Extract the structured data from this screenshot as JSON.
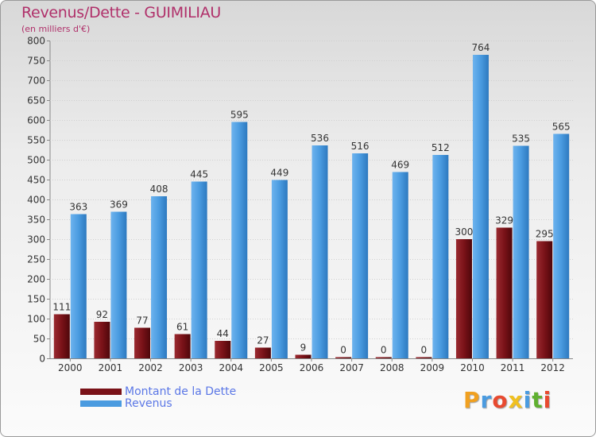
{
  "title": "Revenus/Dette - GUIMILIAU",
  "subtitle": "(en milliers d'€)",
  "colors": {
    "title": "#b0306a",
    "dette": "#7a1218",
    "revenus": "#4a9be0",
    "legend_text": "#5b77e6"
  },
  "chart_data": {
    "type": "bar",
    "title": "Revenus/Dette - GUIMILIAU",
    "subtitle": "(en milliers d'€)",
    "xlabel": "",
    "ylabel": "",
    "ylim": [
      0,
      800
    ],
    "yticks": [
      0,
      50,
      100,
      150,
      200,
      250,
      300,
      350,
      400,
      450,
      500,
      550,
      600,
      650,
      700,
      750,
      800
    ],
    "grid": true,
    "legend_position": "bottom-left",
    "categories": [
      "2000",
      "2001",
      "2002",
      "2003",
      "2004",
      "2005",
      "2006",
      "2007",
      "2008",
      "2009",
      "2010",
      "2011",
      "2012"
    ],
    "series": [
      {
        "name": "Montant de la Dette",
        "color": "#7a1218",
        "values": [
          111,
          92,
          77,
          61,
          44,
          27,
          9,
          0,
          0,
          0,
          300,
          329,
          295
        ]
      },
      {
        "name": "Revenus",
        "color": "#4a9be0",
        "values": [
          363,
          369,
          408,
          445,
          595,
          449,
          536,
          516,
          469,
          512,
          764,
          535,
          565
        ]
      }
    ]
  },
  "legend": [
    {
      "label": "Montant de la Dette",
      "color": "#7a1218"
    },
    {
      "label": "Revenus",
      "color": "#4a9be0"
    }
  ],
  "logo": {
    "letters": [
      "P",
      "r",
      "o",
      "x",
      "i",
      "t",
      "i"
    ],
    "colors": [
      "#f0a020",
      "#4a9be0",
      "#e84a30",
      "#f0c020",
      "#4a9be0",
      "#60b030",
      "#e84a30"
    ]
  }
}
